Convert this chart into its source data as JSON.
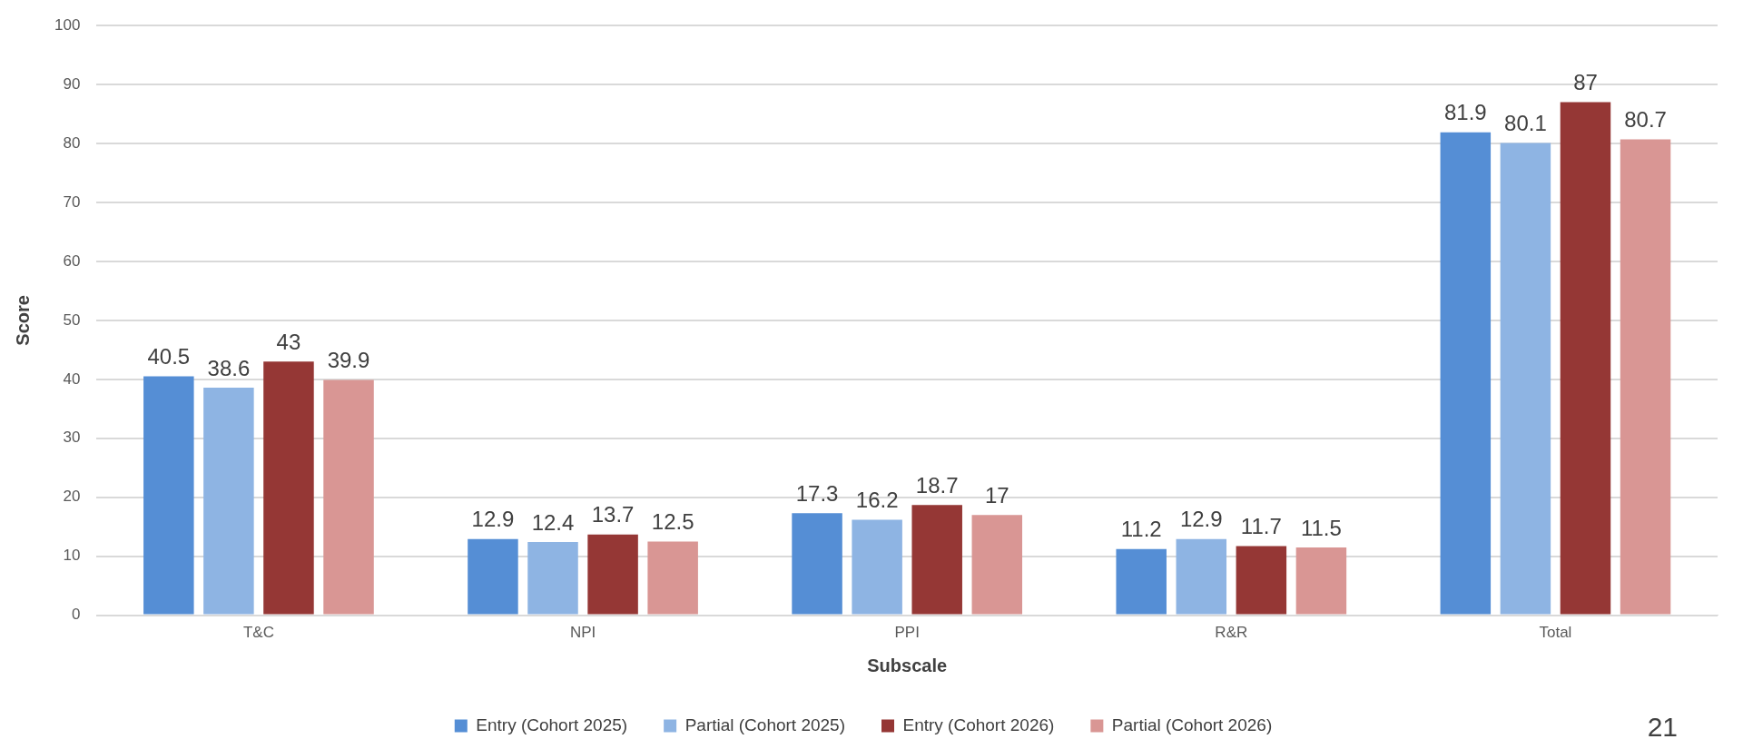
{
  "chart_data": {
    "type": "bar",
    "xlabel": "Subscale",
    "ylabel": "Score",
    "categories": [
      "T&C",
      "NPI",
      "PPI",
      "R&R",
      "Total"
    ],
    "series": [
      {
        "name": "Entry (Cohort 2025)",
        "color": "#558ed5",
        "values": [
          40.5,
          12.9,
          17.3,
          11.2,
          81.9
        ]
      },
      {
        "name": "Partial (Cohort 2025)",
        "color": "#8eb4e3",
        "values": [
          38.6,
          12.4,
          16.2,
          12.9,
          80.1
        ]
      },
      {
        "name": "Entry (Cohort 2026)",
        "color": "#953735",
        "values": [
          43,
          13.7,
          18.7,
          11.7,
          87
        ]
      },
      {
        "name": "Partial (Cohort 2026)",
        "color": "#d99694",
        "values": [
          39.9,
          12.5,
          17,
          11.5,
          80.7
        ]
      }
    ],
    "ylim": [
      0,
      100
    ],
    "yticks": [
      0,
      10,
      20,
      30,
      40,
      50,
      60,
      70,
      80,
      90,
      100
    ],
    "grid": "y",
    "legend": "bottom",
    "data_labels": true,
    "annotations": [
      "21"
    ]
  }
}
